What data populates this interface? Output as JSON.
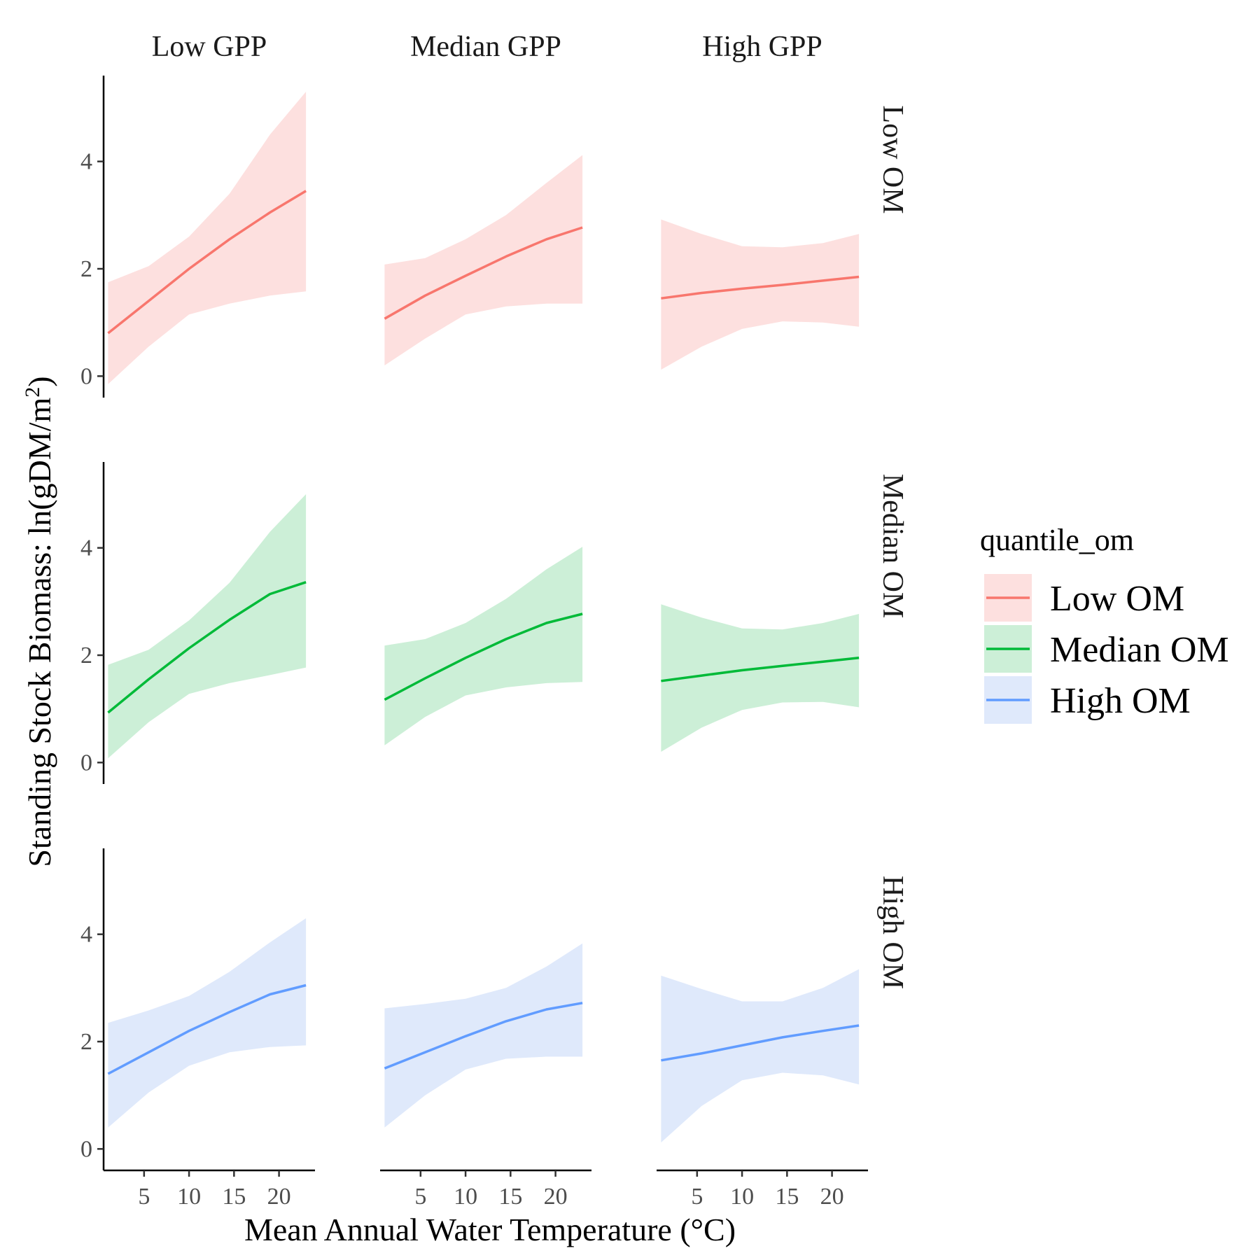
{
  "chart_data": {
    "type": "line",
    "xlabel": "Mean Annual Water Temperature (°C)",
    "ylabel_parts": {
      "main": "Standing Stock Biomass: ln(gDM/m",
      "sup": "2",
      "end": ")"
    },
    "x_ticks": [
      5,
      10,
      15,
      20
    ],
    "y_ticks": [
      0,
      2,
      4
    ],
    "xlim": [
      0.5,
      24
    ],
    "ylim": [
      -0.4,
      5.6
    ],
    "columns": [
      "Low GPP",
      "Median GPP",
      "High GPP"
    ],
    "rows": [
      "Low OM",
      "Median OM",
      "High OM"
    ],
    "legend": {
      "title": "quantile_om",
      "entries": [
        {
          "label": "Low OM",
          "line": "#F8766D",
          "fill": "#FDE0DF"
        },
        {
          "label": "Median OM",
          "line": "#00BA38",
          "fill": "#CCEFD7"
        },
        {
          "label": "High OM",
          "line": "#619CFF",
          "fill": "#DFE9FB"
        }
      ]
    },
    "x": [
      1,
      5.5,
      10,
      14.5,
      19,
      23
    ],
    "panels": [
      {
        "row": 0,
        "col": 0,
        "fit": [
          0.8,
          1.4,
          2.0,
          2.55,
          3.05,
          3.45
        ],
        "lower": [
          -0.15,
          0.55,
          1.15,
          1.35,
          1.5,
          1.58
        ],
        "upper": [
          1.75,
          2.05,
          2.6,
          3.4,
          4.5,
          5.3
        ]
      },
      {
        "row": 0,
        "col": 1,
        "fit": [
          1.07,
          1.5,
          1.87,
          2.23,
          2.55,
          2.77
        ],
        "lower": [
          0.2,
          0.7,
          1.15,
          1.3,
          1.35,
          1.35
        ],
        "upper": [
          2.08,
          2.2,
          2.55,
          3.0,
          3.6,
          4.12
        ]
      },
      {
        "row": 0,
        "col": 2,
        "fit": [
          1.45,
          1.55,
          1.63,
          1.7,
          1.78,
          1.85
        ],
        "lower": [
          0.12,
          0.55,
          0.88,
          1.02,
          1.0,
          0.92
        ],
        "upper": [
          2.92,
          2.65,
          2.42,
          2.4,
          2.48,
          2.65
        ]
      },
      {
        "row": 1,
        "col": 0,
        "fit": [
          0.93,
          1.55,
          2.13,
          2.66,
          3.14,
          3.36
        ],
        "lower": [
          0.08,
          0.75,
          1.28,
          1.48,
          1.63,
          1.77
        ],
        "upper": [
          1.82,
          2.1,
          2.65,
          3.35,
          4.3,
          5.0
        ]
      },
      {
        "row": 1,
        "col": 1,
        "fit": [
          1.17,
          1.57,
          1.95,
          2.3,
          2.6,
          2.77
        ],
        "lower": [
          0.32,
          0.85,
          1.25,
          1.4,
          1.48,
          1.5
        ],
        "upper": [
          2.18,
          2.3,
          2.6,
          3.05,
          3.6,
          4.02
        ]
      },
      {
        "row": 1,
        "col": 2,
        "fit": [
          1.52,
          1.62,
          1.72,
          1.8,
          1.88,
          1.95
        ],
        "lower": [
          0.2,
          0.65,
          0.98,
          1.12,
          1.13,
          1.03
        ],
        "upper": [
          2.95,
          2.7,
          2.5,
          2.48,
          2.6,
          2.77
        ]
      },
      {
        "row": 2,
        "col": 0,
        "fit": [
          1.4,
          1.8,
          2.2,
          2.55,
          2.88,
          3.05
        ],
        "lower": [
          0.4,
          1.05,
          1.55,
          1.8,
          1.9,
          1.93
        ],
        "upper": [
          2.35,
          2.58,
          2.85,
          3.3,
          3.85,
          4.3
        ]
      },
      {
        "row": 2,
        "col": 1,
        "fit": [
          1.5,
          1.8,
          2.1,
          2.38,
          2.6,
          2.72
        ],
        "lower": [
          0.4,
          1.0,
          1.48,
          1.68,
          1.72,
          1.72
        ],
        "upper": [
          2.62,
          2.7,
          2.8,
          3.0,
          3.4,
          3.83
        ]
      },
      {
        "row": 2,
        "col": 2,
        "fit": [
          1.65,
          1.78,
          1.93,
          2.08,
          2.2,
          2.3
        ],
        "lower": [
          0.12,
          0.8,
          1.28,
          1.42,
          1.37,
          1.2
        ],
        "upper": [
          3.23,
          2.98,
          2.75,
          2.75,
          3.0,
          3.35
        ]
      }
    ]
  }
}
